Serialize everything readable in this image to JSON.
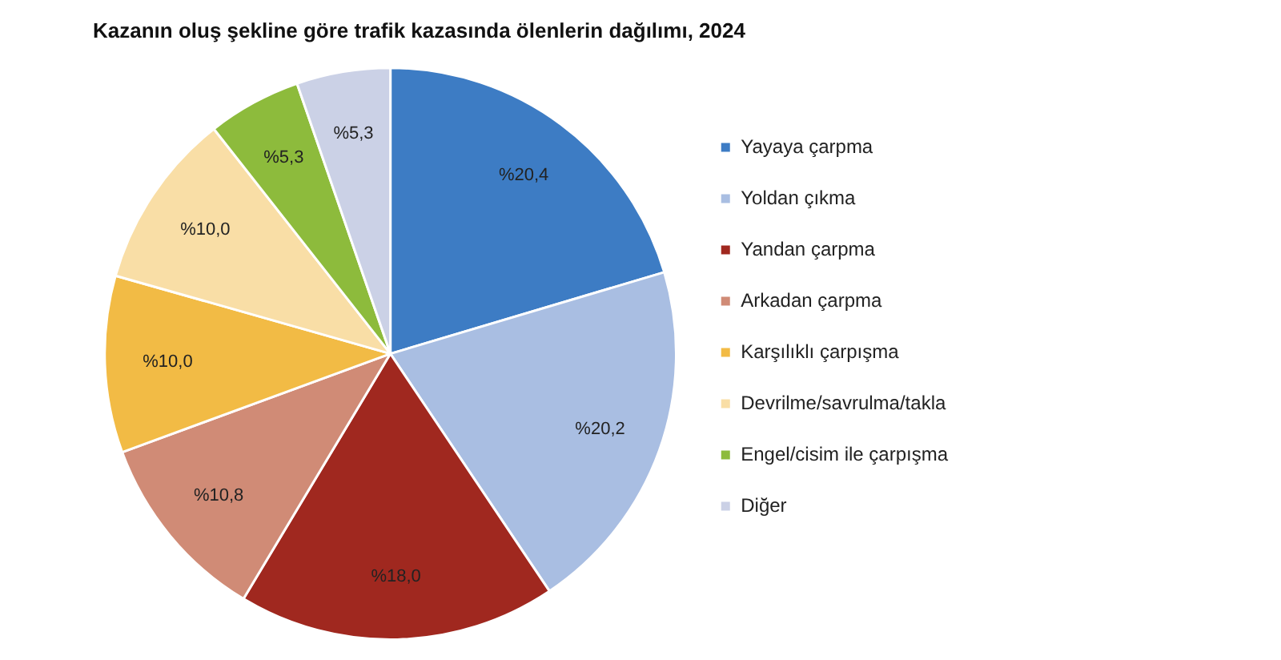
{
  "chart_data": {
    "type": "pie",
    "title": "Kazanın oluş şekline göre trafik kazasında ölenlerin dağılımı, 2024",
    "categories": [
      "Yayaya çarpma",
      "Yoldan çıkma",
      "Yandan çarpma",
      "Arkadan çarpma",
      "Karşılıklı çarpışma",
      "Devrilme/savrulma/takla",
      "Engel/cisim ile çarpışma",
      "Diğer"
    ],
    "values": [
      20.4,
      20.2,
      18.0,
      10.8,
      10.0,
      10.0,
      5.3,
      5.3
    ],
    "value_labels": [
      "%20,4",
      "%20,2",
      "%18,0",
      "%10,8",
      "%10,0",
      "%10,0",
      "%5,3",
      "%5,3"
    ],
    "colors": [
      "#3d7cc4",
      "#a9bee2",
      "#a0281f",
      "#d08b76",
      "#f2bb45",
      "#f9dea6",
      "#8dbb3c",
      "#cbd1e6"
    ],
    "legend": "right"
  }
}
